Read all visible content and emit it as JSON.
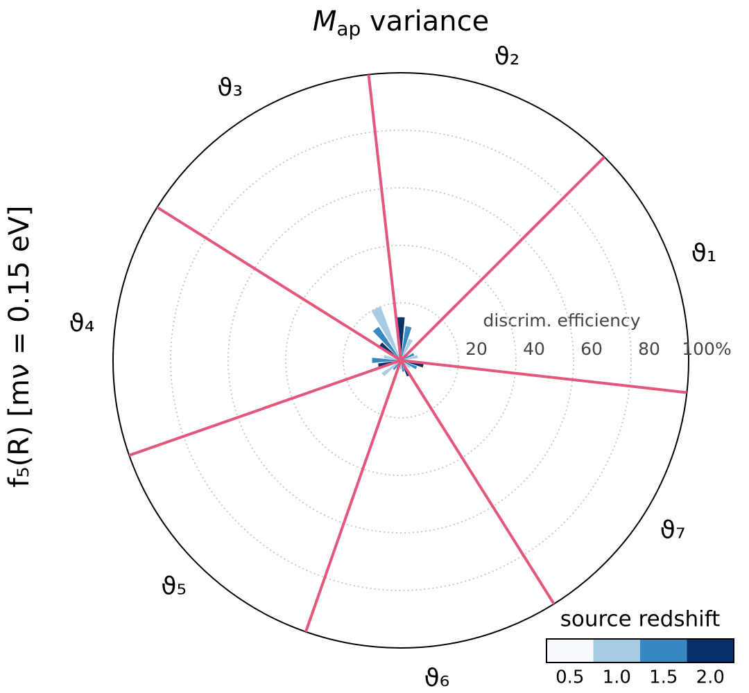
{
  "chart_data": {
    "type": "polar-bar",
    "title": {
      "symbol": "M",
      "subscript": "ap",
      "text": " variance"
    },
    "row_label": "f₅(R) [mν = 0.15 eV]",
    "radial_label": "discrim. efficiency",
    "categories": [
      "ϑ₁",
      "ϑ₂",
      "ϑ₃",
      "ϑ₄",
      "ϑ₅",
      "ϑ₆",
      "ϑ₇"
    ],
    "series": [
      {
        "name": "0.5",
        "color": "#f7fbff",
        "values": [
          2,
          2,
          2,
          2,
          2,
          2,
          2
        ]
      },
      {
        "name": "1.0",
        "color": "#a6cbe3",
        "values": [
          6,
          8,
          20,
          6,
          8,
          3,
          4
        ]
      },
      {
        "name": "1.5",
        "color": "#3787c0",
        "values": [
          5,
          12,
          14,
          10,
          4,
          4,
          6
        ]
      },
      {
        "name": "2.0",
        "color": "#08306b",
        "values": [
          3,
          15,
          9,
          8,
          3,
          6,
          8
        ]
      }
    ],
    "rlim": [
      0,
      100
    ],
    "rticks": [
      20,
      40,
      60,
      80,
      {
        "value": 100,
        "label": "100%"
      }
    ],
    "grid": true,
    "sector_line_color": "#e2577a",
    "legend_title": "source redshift"
  }
}
